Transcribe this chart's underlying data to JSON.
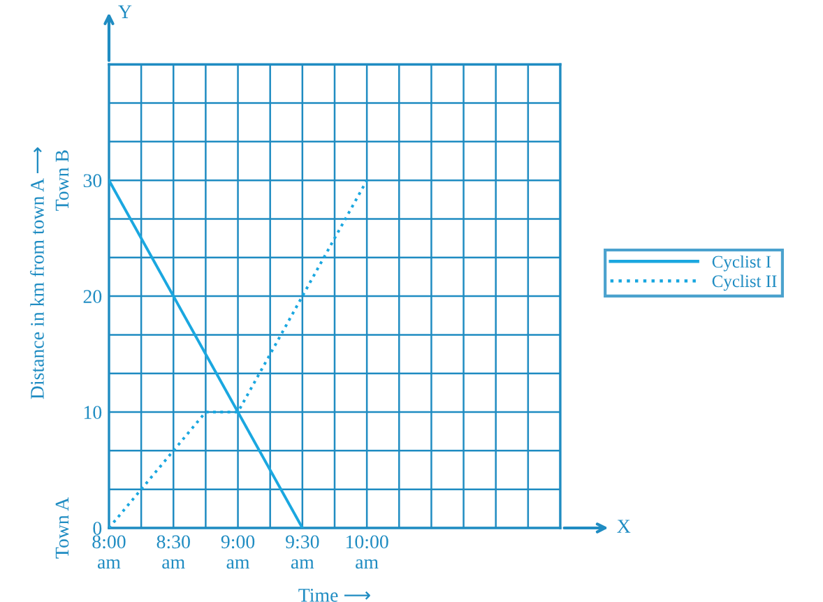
{
  "chart_data": {
    "type": "line",
    "xlabel": "Time ⟶",
    "ylabel": "Distance in km from town A ⟶",
    "series": [
      {
        "name": "Cyclist I",
        "color": "#1aa7e0",
        "line_style": "solid",
        "x": [
          8,
          9.5
        ],
        "values": [
          30,
          0
        ]
      },
      {
        "name": "Cyclist II",
        "color": "#1aa7e0",
        "line_style": "dotted",
        "x": [
          8,
          8.75,
          9,
          10
        ],
        "values": [
          0,
          10,
          10,
          30
        ]
      }
    ],
    "xlim": [
      8,
      11.5
    ],
    "xticks": [
      {
        "value": 8,
        "label": "8:00\nam"
      },
      {
        "value": 8.25,
        "label": null
      },
      {
        "value": 8.5,
        "label": "8:30\nam"
      },
      {
        "value": 8.75,
        "label": null
      },
      {
        "value": 9,
        "label": "9:00\nam"
      },
      {
        "value": 9.25,
        "label": null
      },
      {
        "value": 9.5,
        "label": "9:30\nam"
      },
      {
        "value": 9.75,
        "label": null
      },
      {
        "value": 10,
        "label": "10:00\nam"
      },
      {
        "value": 10.25,
        "label": null
      },
      {
        "value": 10.5,
        "label": null
      },
      {
        "value": 10.75,
        "label": null
      },
      {
        "value": 11,
        "label": null
      },
      {
        "value": 11.25,
        "label": null
      },
      {
        "value": 11.5,
        "label": null
      }
    ],
    "ylim": [
      0,
      40
    ],
    "yticks": [
      0,
      {
        "value": 3.333,
        "label": null
      },
      {
        "value": 6.667,
        "label": null
      },
      10,
      {
        "value": 13.333,
        "label": null
      },
      {
        "value": 16.667,
        "label": null
      },
      20,
      {
        "value": 23.333,
        "label": null
      },
      {
        "value": 26.667,
        "label": null
      },
      30,
      {
        "value": 33.333,
        "label": null
      },
      {
        "value": 36.667,
        "label": null
      },
      {
        "value": 40,
        "label": null
      }
    ],
    "grid": true,
    "legend": "right",
    "marker": "none",
    "annotations": [
      "Town A",
      "Town B",
      "X",
      "Y"
    ]
  }
}
